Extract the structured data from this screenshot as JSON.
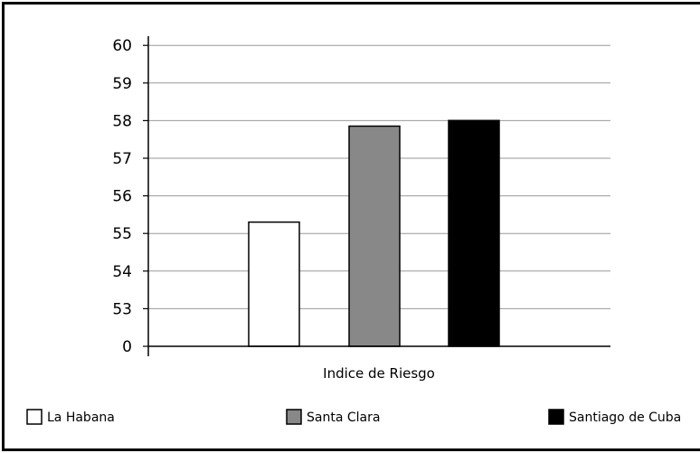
{
  "chart_data": {
    "type": "bar",
    "categories": [
      "Indice de Riesgo"
    ],
    "xlabel": "Indice de Riesgo",
    "y_ticks": [
      "0",
      "53",
      "54",
      "55",
      "56",
      "57",
      "58",
      "59",
      "60"
    ],
    "ylim": [
      52,
      60
    ],
    "axis_break": "0 to 52 omitted",
    "grid": true,
    "legend_position": "bottom",
    "series": [
      {
        "name": "La Habana",
        "value": 55.3,
        "color": "#ffffff"
      },
      {
        "name": "Santa Clara",
        "value": 57.85,
        "color": "#888888"
      },
      {
        "name": "Santiago de Cuba",
        "value": 58.0,
        "color": "#000000"
      }
    ]
  }
}
